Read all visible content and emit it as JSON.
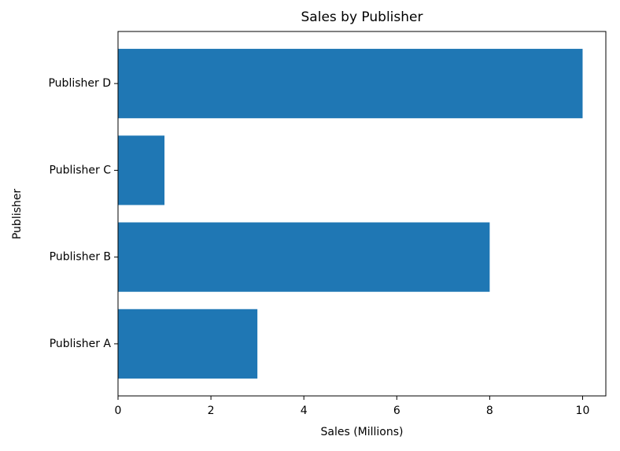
{
  "chart_data": {
    "type": "barh",
    "title": "Sales by Publisher",
    "x_label": "Sales (Millions)",
    "y_label": "Publisher",
    "categories": [
      "Publisher A",
      "Publisher B",
      "Publisher C",
      "Publisher D"
    ],
    "values": [
      3,
      8,
      1,
      10
    ],
    "color": "#1f77b4",
    "xlim": [
      0,
      10.5
    ],
    "xticks": [
      0,
      2,
      4,
      6,
      8,
      10
    ],
    "grid": false
  }
}
